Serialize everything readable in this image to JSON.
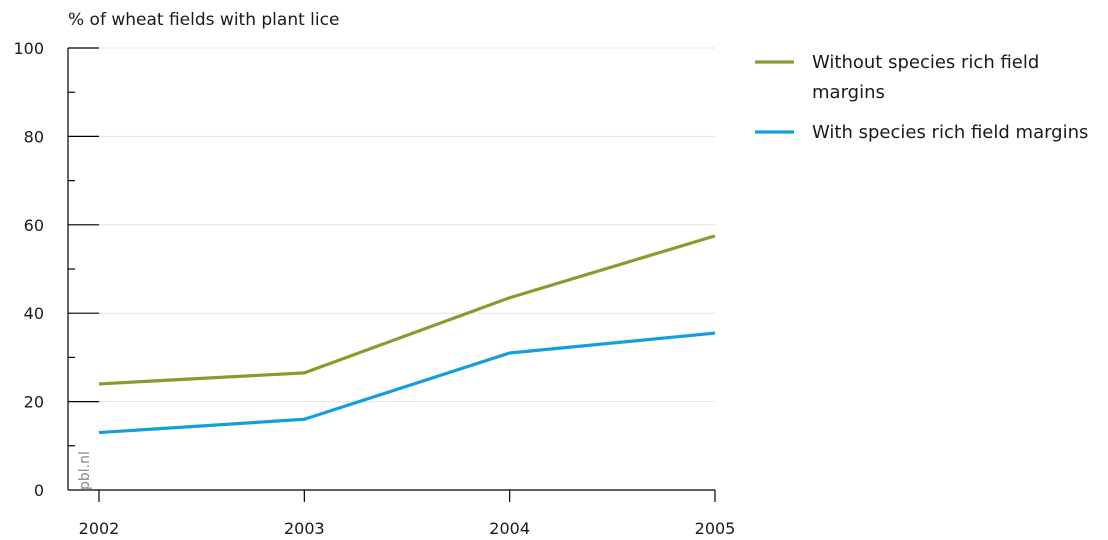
{
  "chart_data": {
    "type": "line",
    "title": "",
    "ylabel": "% of wheat fields with plant lice",
    "xlabel": "",
    "x": [
      "2002",
      "2003",
      "2004",
      "2005"
    ],
    "ylim": [
      0,
      100
    ],
    "yticks": [
      "0",
      "20",
      "40",
      "60",
      "80",
      "100"
    ],
    "grid": true,
    "legend_position": "right",
    "series": [
      {
        "name": "Without species rich field margins",
        "name_lines": [
          "Without species rich field",
          "margins"
        ],
        "color": "#8b9a2a",
        "values": [
          24,
          26.5,
          43.5,
          57.5
        ]
      },
      {
        "name": "With species rich field margins",
        "name_lines": [
          "With species rich field margins"
        ],
        "color": "#139fdc",
        "values": [
          13,
          16,
          31,
          35.5
        ]
      }
    ],
    "watermark": "pbl.nl"
  }
}
